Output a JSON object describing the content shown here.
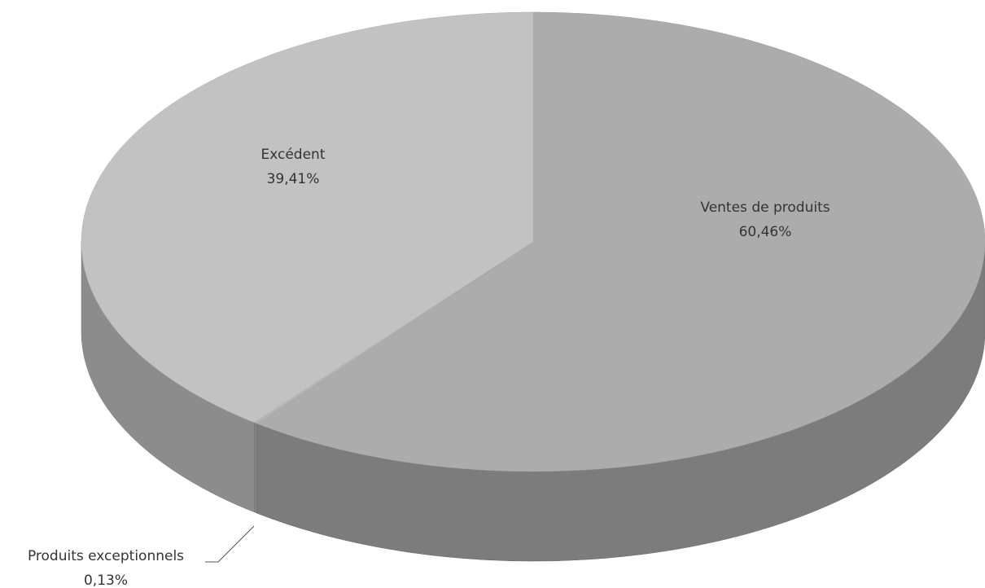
{
  "chart_data": {
    "type": "pie",
    "categories": [
      "Ventes de produits",
      "Produits exceptionnels",
      "Excédent"
    ],
    "values": [
      60.46,
      0.13,
      39.41
    ],
    "value_labels": [
      "60,46%",
      "0,13%",
      "39,41%"
    ],
    "colors": [
      "#acacac",
      "#b4b4b4",
      "#c2c2c2"
    ]
  }
}
